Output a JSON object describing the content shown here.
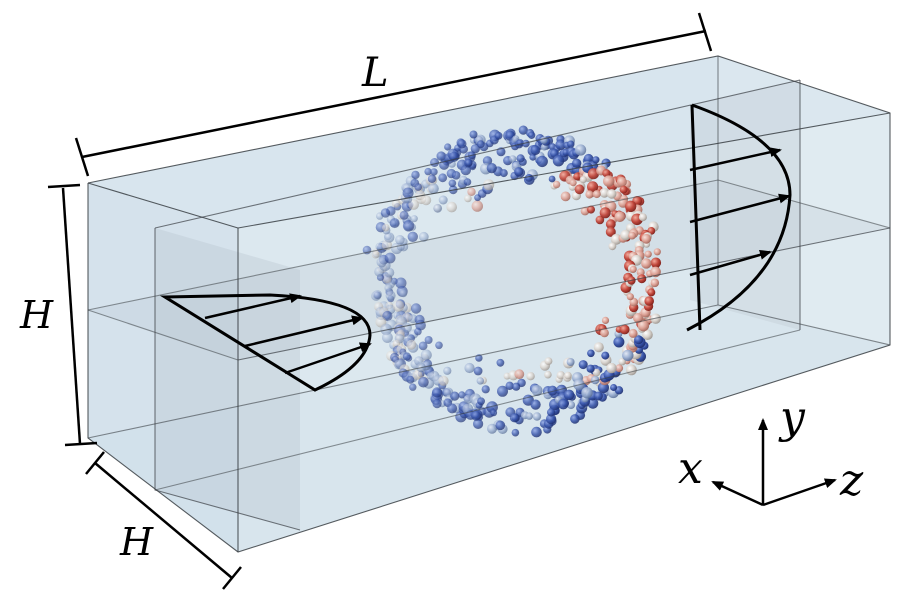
{
  "labels": {
    "length": "L",
    "height": "H",
    "width": "H",
    "axis_x": "x",
    "axis_y": "y",
    "axis_z": "z"
  },
  "colors": {
    "box_fill": "#c7d9e6",
    "box_edge": "#3a3f44",
    "particle_blue": "#3552a8",
    "particle_red": "#c0453a",
    "particle_white": "#d9d4d0"
  },
  "icons": [
    "flow-profile-inlet",
    "flow-profile-outlet",
    "axis-triad"
  ]
}
